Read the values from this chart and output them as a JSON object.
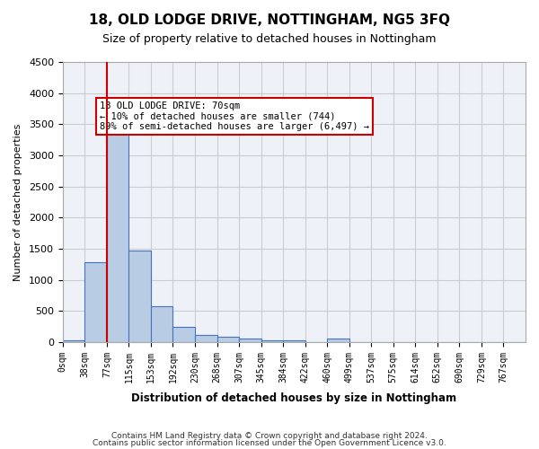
{
  "title": "18, OLD LODGE DRIVE, NOTTINGHAM, NG5 3FQ",
  "subtitle": "Size of property relative to detached houses in Nottingham",
  "xlabel": "Distribution of detached houses by size in Nottingham",
  "ylabel": "Number of detached properties",
  "bar_color": "#b8cce4",
  "bar_edge_color": "#4472c4",
  "grid_color": "#cccccc",
  "background_color": "#eef2f8",
  "categories": [
    "0sqm",
    "38sqm",
    "77sqm",
    "115sqm",
    "153sqm",
    "192sqm",
    "230sqm",
    "268sqm",
    "307sqm",
    "345sqm",
    "384sqm",
    "422sqm",
    "460sqm",
    "499sqm",
    "537sqm",
    "575sqm",
    "614sqm",
    "652sqm",
    "690sqm",
    "729sqm",
    "767sqm"
  ],
  "values": [
    30,
    1280,
    3500,
    1470,
    580,
    240,
    115,
    80,
    50,
    30,
    30,
    0,
    50,
    0,
    0,
    0,
    0,
    0,
    0,
    0,
    0
  ],
  "ylim": [
    0,
    4500
  ],
  "yticks": [
    0,
    500,
    1000,
    1500,
    2000,
    2500,
    3000,
    3500,
    4000,
    4500
  ],
  "property_line_x": 70,
  "property_line_bin": 2,
  "annotation_text": "18 OLD LODGE DRIVE: 70sqm\n← 10% of detached houses are smaller (744)\n89% of semi-detached houses are larger (6,497) →",
  "annotation_box_color": "#ffffff",
  "annotation_border_color": "#cc0000",
  "property_line_color": "#cc0000",
  "footer_line1": "Contains HM Land Registry data © Crown copyright and database right 2024.",
  "footer_line2": "Contains public sector information licensed under the Open Government Licence v3.0."
}
